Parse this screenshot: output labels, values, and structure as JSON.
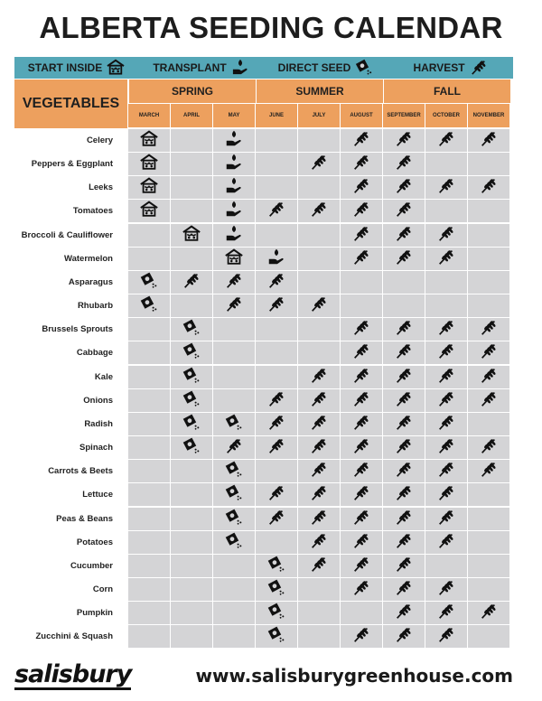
{
  "title": "ALBERTA SEEDING CALENDAR",
  "legend": [
    {
      "label": "START INSIDE",
      "icon": "start-inside-icon"
    },
    {
      "label": "TRANSPLANT",
      "icon": "transplant-icon"
    },
    {
      "label": "DIRECT SEED",
      "icon": "direct-seed-icon"
    },
    {
      "label": "HARVEST",
      "icon": "harvest-icon"
    }
  ],
  "header": {
    "vegetables_label": "VEGETABLES",
    "seasons": [
      {
        "label": "SPRING",
        "span": 3
      },
      {
        "label": "SUMMER",
        "span": 3
      },
      {
        "label": "FALL",
        "span": 3
      }
    ],
    "months": [
      "MARCH",
      "APRIL",
      "MAY",
      "JUNE",
      "JULY",
      "AUGUST",
      "SEPTEMBER",
      "OCTOBER",
      "NOVEMBER"
    ]
  },
  "rows": [
    {
      "name": "Celery",
      "cells": [
        "S",
        "",
        "T",
        "",
        "",
        "H",
        "H",
        "H",
        "H"
      ]
    },
    {
      "name": "Peppers & Eggplant",
      "cells": [
        "S",
        "",
        "T",
        "",
        "H",
        "H",
        "H",
        "",
        ""
      ]
    },
    {
      "name": "Leeks",
      "cells": [
        "S",
        "",
        "T",
        "",
        "",
        "H",
        "H",
        "H",
        "H"
      ]
    },
    {
      "name": "Tomatoes",
      "cells": [
        "S",
        "",
        "T",
        "H",
        "H",
        "H",
        "H",
        "",
        ""
      ]
    },
    {
      "name": "Broccoli & Cauliflower",
      "cells": [
        "",
        "S",
        "T",
        "",
        "",
        "H",
        "H",
        "H",
        ""
      ]
    },
    {
      "name": "Watermelon",
      "cells": [
        "",
        "",
        "S",
        "T",
        "",
        "H",
        "H",
        "H",
        ""
      ]
    },
    {
      "name": "Asparagus",
      "cells": [
        "D",
        "H",
        "H",
        "H",
        "",
        "",
        "",
        "",
        ""
      ]
    },
    {
      "name": "Rhubarb",
      "cells": [
        "D",
        "",
        "H",
        "H",
        "H",
        "",
        "",
        "",
        ""
      ]
    },
    {
      "name": "Brussels Sprouts",
      "cells": [
        "",
        "D",
        "",
        "",
        "",
        "H",
        "H",
        "H",
        "H"
      ]
    },
    {
      "name": "Cabbage",
      "cells": [
        "",
        "D",
        "",
        "",
        "",
        "H",
        "H",
        "H",
        "H"
      ]
    },
    {
      "name": "Kale",
      "cells": [
        "",
        "D",
        "",
        "",
        "H",
        "H",
        "H",
        "H",
        "H"
      ]
    },
    {
      "name": "Onions",
      "cells": [
        "",
        "D",
        "",
        "H",
        "H",
        "H",
        "H",
        "H",
        "H"
      ]
    },
    {
      "name": "Radish",
      "cells": [
        "",
        "D",
        "D",
        "H",
        "H",
        "H",
        "H",
        "H",
        ""
      ]
    },
    {
      "name": "Spinach",
      "cells": [
        "",
        "D",
        "H",
        "H",
        "H",
        "H",
        "H",
        "H",
        "H"
      ]
    },
    {
      "name": "Carrots & Beets",
      "cells": [
        "",
        "",
        "D",
        "",
        "H",
        "H",
        "H",
        "H",
        "H"
      ]
    },
    {
      "name": "Lettuce",
      "cells": [
        "",
        "",
        "D",
        "H",
        "H",
        "H",
        "H",
        "H",
        ""
      ]
    },
    {
      "name": "Peas & Beans",
      "cells": [
        "",
        "",
        "D",
        "H",
        "H",
        "H",
        "H",
        "H",
        ""
      ]
    },
    {
      "name": "Potatoes",
      "cells": [
        "",
        "",
        "D",
        "",
        "H",
        "H",
        "H",
        "H",
        ""
      ]
    },
    {
      "name": "Cucumber",
      "cells": [
        "",
        "",
        "",
        "D",
        "H",
        "H",
        "H",
        "",
        ""
      ]
    },
    {
      "name": "Corn",
      "cells": [
        "",
        "",
        "",
        "D",
        "",
        "H",
        "H",
        "H",
        ""
      ]
    },
    {
      "name": "Pumpkin",
      "cells": [
        "",
        "",
        "",
        "D",
        "",
        "",
        "H",
        "H",
        "H"
      ]
    },
    {
      "name": "Zucchini & Squash",
      "cells": [
        "",
        "",
        "",
        "D",
        "",
        "H",
        "H",
        "H",
        ""
      ]
    }
  ],
  "cell_codes": {
    "S": "start-inside",
    "T": "transplant",
    "D": "direct-seed",
    "H": "harvest"
  },
  "colors": {
    "legend_bar": "#55a7b7",
    "header_orange": "#eda05e",
    "cell_gray": "#d4d4d6"
  },
  "footer": {
    "logo": "salisbury",
    "url": "www.salisburygreenhouse.com"
  }
}
